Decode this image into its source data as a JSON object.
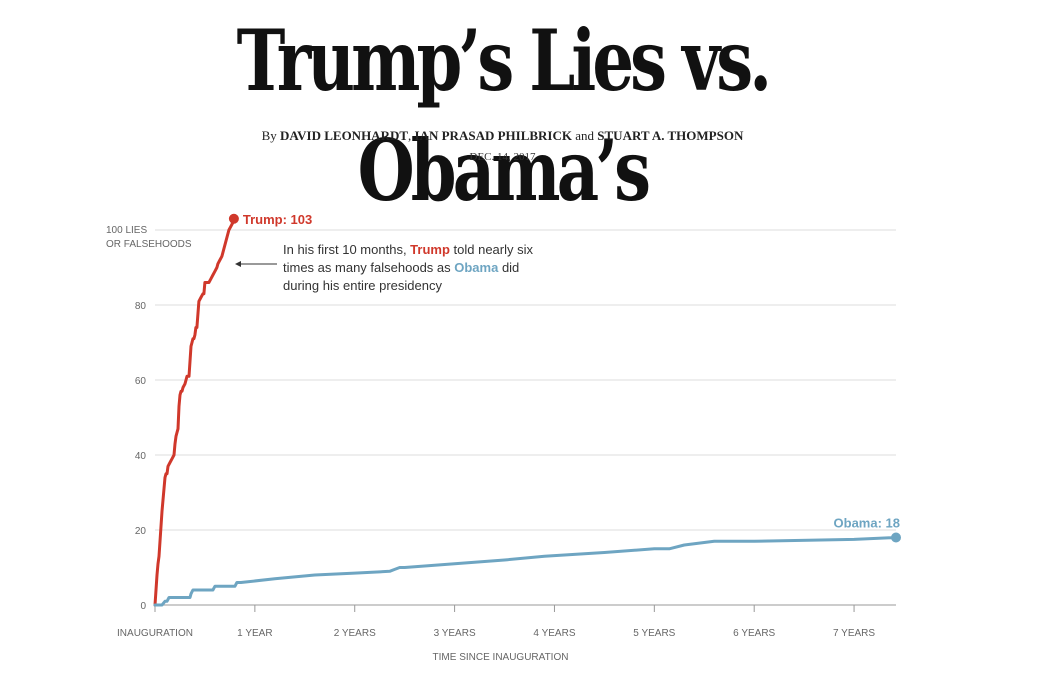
{
  "headline": "Trump’s Lies vs. Obama’s",
  "byline": {
    "prefix": "By",
    "author1": "DAVID LEONHARDT",
    "sep1": ",",
    "author2": "IAN PRASAD PHILBRICK",
    "sep2": "and",
    "author3": "STUART A. THOMPSON"
  },
  "date": "DEC. 14, 2017",
  "annotation": {
    "part1": "In his first 10 months, ",
    "trump": "Trump",
    "part2": " told nearly six times as many falsehoods as ",
    "obama": "Obama",
    "part3": " did during his entire presidency"
  },
  "colors": {
    "trump": "#d0382b",
    "obama": "#6ea5c2",
    "grid": "#dddddd",
    "axis": "#999999"
  },
  "chart_data": {
    "type": "line",
    "title": "",
    "xlabel": "TIME SINCE INAUGURATION",
    "ylabel": "",
    "xlim": [
      0,
      7.42
    ],
    "ylim": [
      0,
      100
    ],
    "y_ticks": [
      {
        "value": 0,
        "label": "0"
      },
      {
        "value": 20,
        "label": "20"
      },
      {
        "value": 40,
        "label": "40"
      },
      {
        "value": 60,
        "label": "60"
      },
      {
        "value": 80,
        "label": "80"
      },
      {
        "value": 100,
        "label": "100 LIES",
        "label2": "OR FALSEHOODS"
      }
    ],
    "x_ticks": [
      {
        "value": 0,
        "label": "INAUGURATION"
      },
      {
        "value": 1,
        "label": "1 YEAR"
      },
      {
        "value": 2,
        "label": "2 YEARS"
      },
      {
        "value": 3,
        "label": "3 YEARS"
      },
      {
        "value": 4,
        "label": "4 YEARS"
      },
      {
        "value": 5,
        "label": "5 YEARS"
      },
      {
        "value": 6,
        "label": "6 YEARS"
      },
      {
        "value": 7,
        "label": "7 YEARS"
      }
    ],
    "grid": true,
    "series": [
      {
        "name": "Trump",
        "end_label": "Trump: 103",
        "color": "#d0382b",
        "x": [
          0,
          0.01,
          0.02,
          0.03,
          0.04,
          0.05,
          0.06,
          0.07,
          0.08,
          0.09,
          0.1,
          0.11,
          0.12,
          0.13,
          0.15,
          0.17,
          0.19,
          0.2,
          0.21,
          0.22,
          0.23,
          0.24,
          0.25,
          0.26,
          0.27,
          0.28,
          0.3,
          0.32,
          0.34,
          0.36,
          0.37,
          0.38,
          0.39,
          0.4,
          0.41,
          0.42,
          0.44,
          0.46,
          0.48,
          0.49,
          0.5,
          0.51,
          0.52,
          0.54,
          0.56,
          0.58,
          0.6,
          0.62,
          0.63,
          0.65,
          0.67,
          0.69,
          0.7,
          0.72,
          0.74,
          0.76,
          0.78,
          0.79
        ],
        "y": [
          0,
          4,
          8,
          11,
          13,
          17,
          21,
          25,
          28,
          31,
          34,
          35,
          35,
          37,
          38,
          39,
          40,
          43,
          45,
          46,
          47,
          53,
          56,
          57,
          57,
          58,
          59,
          61,
          61,
          69,
          70,
          71,
          71,
          72,
          74,
          74,
          81,
          82,
          83,
          83,
          86,
          86,
          86,
          86,
          87,
          88,
          89,
          90,
          91,
          92,
          93,
          95,
          96,
          98,
          100,
          101,
          102,
          103
        ]
      },
      {
        "name": "Obama",
        "end_label": "Obama: 18",
        "color": "#6ea5c2",
        "x": [
          0,
          0.07,
          0.1,
          0.12,
          0.12,
          0.14,
          0.35,
          0.36,
          0.38,
          0.58,
          0.6,
          0.63,
          0.8,
          0.82,
          0.86,
          1.2,
          1.6,
          2.0,
          2.35,
          2.4,
          2.45,
          2.5,
          3.0,
          3.5,
          3.9,
          4.2,
          4.5,
          5.0,
          5.15,
          5.3,
          5.6,
          5.65,
          6.0,
          7.0,
          7.42
        ],
        "y": [
          0,
          0,
          1,
          1,
          1,
          2,
          2,
          3,
          4,
          4,
          5,
          5,
          5,
          6,
          6,
          7,
          8,
          8.5,
          9,
          9.5,
          10,
          10,
          11,
          12,
          13,
          13.5,
          14,
          15,
          15,
          16,
          17,
          17,
          17,
          17.5,
          18
        ]
      }
    ]
  }
}
